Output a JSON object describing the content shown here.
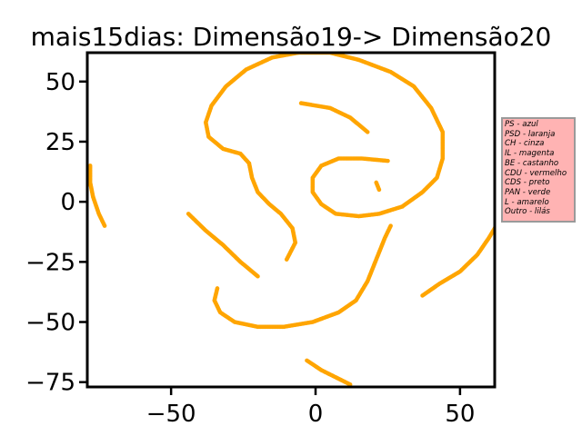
{
  "chart_data": {
    "type": "scatter",
    "title": "mais15dias: Dimensão19-> Dimensão20",
    "xlabel": "",
    "ylabel": "",
    "xlim": [
      -79,
      62
    ],
    "ylim": [
      -77,
      62
    ],
    "x_ticks": [
      -50,
      0,
      50
    ],
    "y_ticks": [
      50,
      25,
      0,
      -25,
      -50,
      -75
    ],
    "x_tick_labels": [
      "−50",
      "0",
      "50"
    ],
    "y_tick_labels": [
      "50",
      "25",
      "0",
      "−25",
      "−50",
      "−75"
    ],
    "grid": false,
    "point_color": "#ffa500",
    "legend_position": "right, outside plot",
    "legend_background": "#ffb3b3",
    "legend_entries": [
      "PS - azul",
      "PSD - laranja",
      "CH - cinza",
      "IL - magenta",
      "BE - castanho",
      "CDU - vermelho",
      "CDS - preto",
      "PAN - verde",
      "L - amarelo",
      "Outro - lilás"
    ],
    "series": [
      {
        "points": [
          [
            -78,
            15
          ],
          [
            -78,
            8
          ],
          [
            -77,
            2
          ],
          [
            -75,
            -5
          ],
          [
            -73,
            -10
          ]
        ]
      },
      {
        "points": [
          [
            -6,
            62
          ],
          [
            5,
            62
          ],
          [
            15,
            59
          ],
          [
            26,
            54
          ],
          [
            34,
            48
          ],
          [
            40,
            39
          ],
          [
            44,
            29
          ],
          [
            44,
            18
          ],
          [
            42,
            10
          ],
          [
            37,
            4
          ],
          [
            30,
            -2
          ],
          [
            22,
            -5
          ],
          [
            15,
            -6
          ],
          [
            7,
            -5
          ],
          [
            2,
            -1
          ],
          [
            -1,
            4
          ],
          [
            -1,
            10
          ],
          [
            2,
            15
          ],
          [
            8,
            18
          ],
          [
            16,
            18
          ],
          [
            25,
            17
          ]
        ]
      },
      {
        "points": [
          [
            -6,
            62
          ],
          [
            -15,
            60
          ],
          [
            -24,
            55
          ],
          [
            -31,
            48
          ],
          [
            -36,
            40
          ],
          [
            -38,
            33
          ],
          [
            -37,
            27
          ],
          [
            -32,
            22
          ],
          [
            -26,
            20
          ],
          [
            -23,
            16
          ],
          [
            -22,
            10
          ],
          [
            -20,
            4
          ],
          [
            -16,
            -1
          ],
          [
            -12,
            -5
          ],
          [
            -8,
            -11
          ],
          [
            -7,
            -17
          ],
          [
            -10,
            -24
          ]
        ]
      },
      {
        "points": [
          [
            -5,
            41
          ],
          [
            5,
            39
          ],
          [
            12,
            35
          ],
          [
            18,
            29
          ]
        ]
      },
      {
        "points": [
          [
            21,
            8
          ],
          [
            22,
            5
          ]
        ]
      },
      {
        "points": [
          [
            -44,
            -5
          ],
          [
            -38,
            -12
          ],
          [
            -32,
            -18
          ],
          [
            -26,
            -25
          ],
          [
            -20,
            -31
          ]
        ]
      },
      {
        "points": [
          [
            -34,
            -36
          ],
          [
            -35,
            -41
          ],
          [
            -33,
            -46
          ],
          [
            -28,
            -50
          ],
          [
            -20,
            -52
          ],
          [
            -11,
            -52
          ],
          [
            -1,
            -50
          ],
          [
            8,
            -46
          ],
          [
            14,
            -41
          ],
          [
            18,
            -33
          ],
          [
            21,
            -24
          ],
          [
            24,
            -15
          ],
          [
            26,
            -10
          ]
        ]
      },
      {
        "points": [
          [
            -3,
            -66
          ],
          [
            2,
            -70
          ],
          [
            7,
            -73
          ],
          [
            12,
            -76
          ]
        ]
      },
      {
        "points": [
          [
            37,
            -39
          ],
          [
            43,
            -34
          ],
          [
            50,
            -29
          ],
          [
            56,
            -22
          ],
          [
            60,
            -15
          ],
          [
            62,
            -11
          ]
        ]
      }
    ]
  }
}
